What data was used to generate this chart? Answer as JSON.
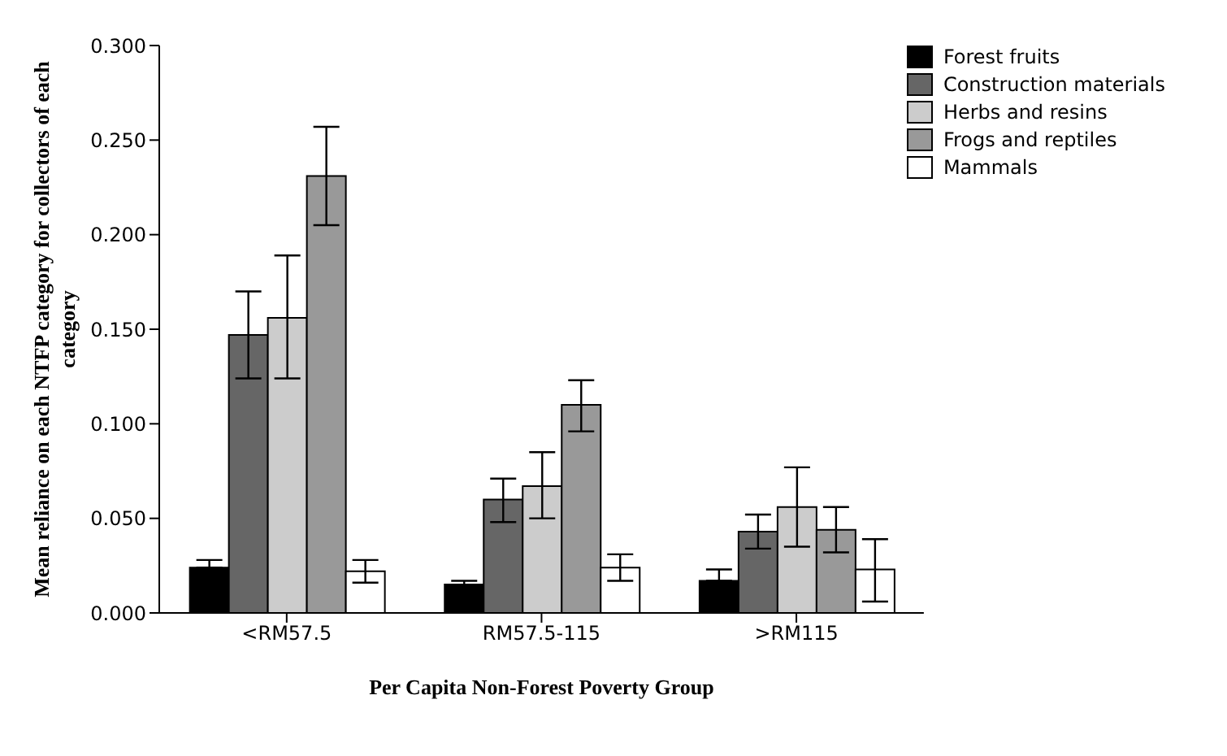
{
  "chart_data": {
    "type": "bar",
    "xlabel": "Per Capita Non-Forest Poverty Group",
    "ylabel": "Mean reliance on each NTFP category for collectors of each category",
    "categories": [
      "<RM57.5",
      "RM57.5-115",
      ">RM115"
    ],
    "series": [
      {
        "name": "Forest fruits",
        "color": "#000000",
        "values": [
          0.024,
          0.015,
          0.017
        ],
        "errors": [
          [
            0.024,
            0.028
          ],
          [
            0.015,
            0.017
          ],
          [
            0.017,
            0.023
          ]
        ]
      },
      {
        "name": "Construction materials",
        "color": "#666666",
        "values": [
          0.147,
          0.06,
          0.043
        ],
        "errors": [
          [
            0.124,
            0.17
          ],
          [
            0.048,
            0.071
          ],
          [
            0.034,
            0.052
          ]
        ]
      },
      {
        "name": "Herbs and resins",
        "color": "#cccccc",
        "values": [
          0.156,
          0.067,
          0.056
        ],
        "errors": [
          [
            0.124,
            0.189
          ],
          [
            0.05,
            0.085
          ],
          [
            0.035,
            0.077
          ]
        ]
      },
      {
        "name": "Frogs and reptiles",
        "color": "#999999",
        "values": [
          0.231,
          0.11,
          0.044
        ],
        "errors": [
          [
            0.205,
            0.257
          ],
          [
            0.096,
            0.123
          ],
          [
            0.032,
            0.056
          ]
        ]
      },
      {
        "name": "Mammals",
        "color": "#ffffff",
        "values": [
          0.022,
          0.024,
          0.023
        ],
        "errors": [
          [
            0.016,
            0.028
          ],
          [
            0.017,
            0.031
          ],
          [
            0.006,
            0.039
          ]
        ]
      }
    ],
    "ylim": [
      0,
      0.3
    ],
    "yticks": [
      {
        "value": 0,
        "label": "0.000"
      },
      {
        "value": 0.05,
        "label": "0.050"
      },
      {
        "value": 0.1,
        "label": "0.100"
      },
      {
        "value": 0.15,
        "label": "0.150"
      },
      {
        "value": 0.2,
        "label": "0.200"
      },
      {
        "value": 0.25,
        "label": "0.250"
      },
      {
        "value": 0.3,
        "label": "0.300"
      }
    ],
    "grid": false,
    "legend": "top right"
  }
}
